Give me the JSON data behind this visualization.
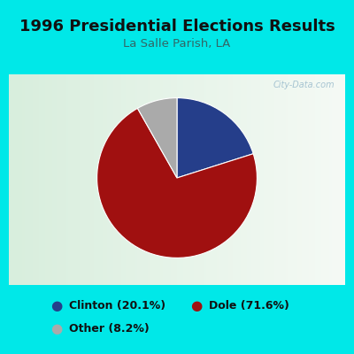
{
  "title": "1996 Presidential Elections Results",
  "subtitle": "La Salle Parish, LA",
  "slices": [
    20.1,
    71.6,
    8.2
  ],
  "labels": [
    "Clinton",
    "Dole",
    "Other"
  ],
  "colors": [
    "#253e8a",
    "#a01010",
    "#aaaaaa"
  ],
  "legend_labels": [
    "Clinton (20.1%)",
    "Dole (71.6%)",
    "Other (8.2%)"
  ],
  "bg_cyan": "#00e8e8",
  "bg_chart_gradient_left": "#d8eedd",
  "bg_chart_right": "#f0f8f0",
  "title_fontsize": 13,
  "subtitle_fontsize": 9.5,
  "subtitle_color": "#336666",
  "title_color": "#111111",
  "legend_fontsize": 9,
  "watermark": "City-Data.com",
  "watermark_color": "#99bbcc",
  "startangle": 90,
  "counterclock": false
}
